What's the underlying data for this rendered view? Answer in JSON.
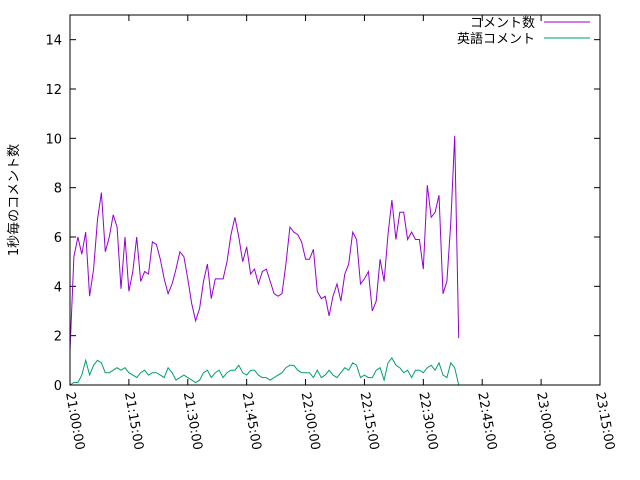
{
  "chart_data": {
    "type": "line",
    "ylabel": "1秒毎のコメント数",
    "ylim": [
      0,
      15
    ],
    "yticks": [
      0,
      2,
      4,
      6,
      8,
      10,
      12,
      14
    ],
    "xlim": [
      "21:00:00",
      "23:15:00"
    ],
    "xticks": [
      "21:00:00",
      "21:15:00",
      "21:30:00",
      "21:45:00",
      "22:00:00",
      "22:15:00",
      "22:30:00",
      "22:45:00",
      "23:00:00",
      "23:15:00"
    ],
    "x_start": "21:00:00",
    "x_step_seconds": 60,
    "legend_position": "top-right",
    "grid": false,
    "series": [
      {
        "name": "コメント数",
        "color": "#9400d3",
        "values": [
          1.4,
          5.2,
          6.0,
          5.3,
          6.2,
          3.6,
          4.7,
          6.7,
          7.8,
          5.4,
          6.0,
          6.9,
          6.4,
          3.9,
          6.0,
          3.8,
          4.6,
          6.0,
          4.2,
          4.6,
          4.5,
          5.8,
          5.7,
          5.1,
          4.3,
          3.7,
          4.1,
          4.7,
          5.4,
          5.2,
          4.3,
          3.3,
          2.6,
          3.1,
          4.2,
          4.9,
          3.5,
          4.3,
          4.3,
          4.3,
          5.0,
          6.1,
          6.8,
          6.0,
          5.0,
          5.6,
          4.5,
          4.7,
          4.1,
          4.6,
          4.7,
          4.2,
          3.7,
          3.6,
          3.7,
          4.9,
          6.4,
          6.2,
          6.1,
          5.8,
          5.1,
          5.1,
          5.5,
          3.8,
          3.5,
          3.6,
          2.8,
          3.6,
          4.1,
          3.4,
          4.5,
          4.9,
          6.2,
          5.9,
          4.1,
          4.3,
          4.6,
          3.0,
          3.4,
          5.1,
          4.2,
          6.1,
          7.5,
          5.9,
          7.0,
          7.0,
          5.9,
          6.2,
          5.9,
          5.9,
          4.7,
          8.1,
          6.8,
          7.0,
          7.7,
          3.7,
          4.2,
          6.6,
          10.1,
          1.9
        ]
      },
      {
        "name": "英語コメント",
        "color": "#009e73",
        "values": [
          0.0,
          0.1,
          0.1,
          0.4,
          1.0,
          0.4,
          0.8,
          1.0,
          0.9,
          0.5,
          0.5,
          0.6,
          0.7,
          0.6,
          0.7,
          0.5,
          0.4,
          0.3,
          0.5,
          0.6,
          0.4,
          0.5,
          0.5,
          0.4,
          0.3,
          0.7,
          0.5,
          0.2,
          0.3,
          0.4,
          0.3,
          0.2,
          0.1,
          0.2,
          0.5,
          0.6,
          0.3,
          0.5,
          0.6,
          0.3,
          0.5,
          0.6,
          0.6,
          0.8,
          0.5,
          0.4,
          0.6,
          0.6,
          0.4,
          0.3,
          0.3,
          0.2,
          0.3,
          0.4,
          0.5,
          0.7,
          0.8,
          0.8,
          0.6,
          0.5,
          0.5,
          0.5,
          0.3,
          0.6,
          0.3,
          0.4,
          0.6,
          0.4,
          0.3,
          0.5,
          0.7,
          0.6,
          0.9,
          0.8,
          0.3,
          0.4,
          0.3,
          0.3,
          0.6,
          0.7,
          0.2,
          0.9,
          1.1,
          0.8,
          0.7,
          0.5,
          0.6,
          0.3,
          0.6,
          0.6,
          0.5,
          0.7,
          0.8,
          0.6,
          0.9,
          0.4,
          0.3,
          0.9,
          0.7,
          0.0
        ]
      }
    ]
  }
}
